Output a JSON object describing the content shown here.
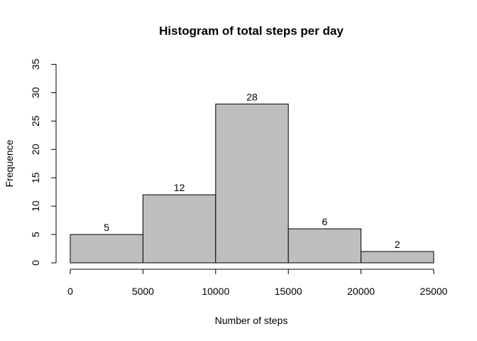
{
  "chart_data": {
    "type": "bar",
    "title": "Histogram of total steps per day",
    "xlabel": "Number of steps",
    "ylabel": "Frequence",
    "bins": [
      {
        "from": 0,
        "to": 5000,
        "value": 5
      },
      {
        "from": 5000,
        "to": 10000,
        "value": 12
      },
      {
        "from": 10000,
        "to": 15000,
        "value": 28
      },
      {
        "from": 15000,
        "to": 20000,
        "value": 6
      },
      {
        "from": 20000,
        "to": 25000,
        "value": 2
      }
    ],
    "values": [
      5,
      12,
      28,
      6,
      2
    ],
    "data_labels": [
      "5",
      "12",
      "28",
      "6",
      "2"
    ],
    "xlim": [
      0,
      25000
    ],
    "ylim": [
      0,
      35
    ],
    "xticks": [
      0,
      5000,
      10000,
      15000,
      20000,
      25000
    ],
    "yticks": [
      0,
      5,
      10,
      15,
      20,
      25,
      30,
      35
    ],
    "grid": false,
    "bar_color": "#bebebe",
    "edge_color": "#000000"
  }
}
